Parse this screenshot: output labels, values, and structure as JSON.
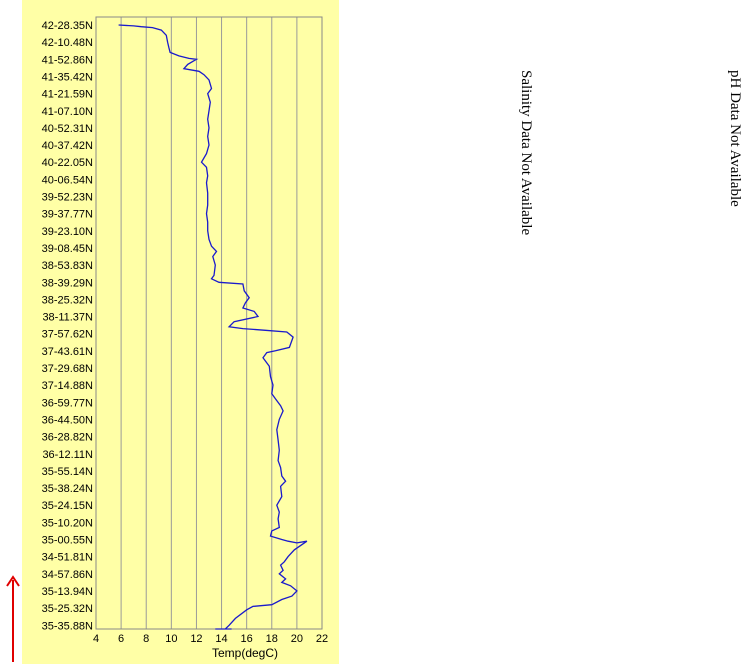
{
  "chart_data": {
    "type": "line",
    "orientation": "vertical-profile",
    "xlabel": "Temp(degC)",
    "xlim": [
      4,
      22
    ],
    "xticks": [
      4,
      6,
      8,
      10,
      12,
      14,
      16,
      18,
      20,
      22
    ],
    "grid": "vertical",
    "series_color": "#1a1acc",
    "y_labels": [
      "42-28.35N",
      "42-10.48N",
      "41-52.86N",
      "41-35.42N",
      "41-21.59N",
      "41-07.10N",
      "40-52.31N",
      "40-37.42N",
      "40-22.05N",
      "40-06.54N",
      "39-52.23N",
      "39-37.77N",
      "39-23.10N",
      "39-08.45N",
      "38-53.83N",
      "38-39.29N",
      "38-25.32N",
      "38-11.37N",
      "37-57.62N",
      "37-43.61N",
      "37-29.68N",
      "37-14.88N",
      "36-59.77N",
      "36-44.50N",
      "36-28.82N",
      "36-12.11N",
      "35-55.14N",
      "35-38.24N",
      "35-24.15N",
      "35-10.20N",
      "35-00.55N",
      "34-51.81N",
      "34-57.86N",
      "35-13.94N",
      "35-25.32N",
      "35-35.88N"
    ],
    "points": [
      [
        5.8,
        0
      ],
      [
        7.0,
        0.05
      ],
      [
        7.6,
        0.1
      ],
      [
        8.5,
        0.15
      ],
      [
        9.2,
        0.3
      ],
      [
        9.6,
        0.6
      ],
      [
        9.7,
        1.0
      ],
      [
        9.8,
        1.3
      ],
      [
        9.9,
        1.6
      ],
      [
        10.6,
        1.8
      ],
      [
        11.4,
        1.95
      ],
      [
        12.0,
        2.0
      ],
      [
        11.3,
        2.3
      ],
      [
        11.0,
        2.55
      ],
      [
        12.2,
        2.7
      ],
      [
        12.6,
        2.9
      ],
      [
        13.0,
        3.2
      ],
      [
        13.2,
        3.7
      ],
      [
        12.9,
        4.0
      ],
      [
        13.1,
        4.5
      ],
      [
        13.0,
        5.0
      ],
      [
        12.9,
        5.5
      ],
      [
        13.0,
        6.0
      ],
      [
        12.9,
        6.5
      ],
      [
        13.0,
        7.0
      ],
      [
        12.8,
        7.5
      ],
      [
        12.4,
        8.0
      ],
      [
        12.8,
        8.3
      ],
      [
        12.9,
        8.8
      ],
      [
        12.8,
        9.2
      ],
      [
        12.9,
        9.8
      ],
      [
        12.9,
        10.5
      ],
      [
        12.8,
        11.0
      ],
      [
        12.9,
        11.5
      ],
      [
        12.9,
        12.0
      ],
      [
        13.0,
        12.5
      ],
      [
        13.2,
        12.9
      ],
      [
        13.6,
        13.2
      ],
      [
        13.3,
        13.5
      ],
      [
        13.5,
        14.0
      ],
      [
        13.4,
        14.6
      ],
      [
        13.2,
        14.8
      ],
      [
        13.8,
        15.0
      ],
      [
        15.7,
        15.1
      ],
      [
        15.8,
        15.5
      ],
      [
        16.2,
        15.9
      ],
      [
        15.9,
        16.2
      ],
      [
        15.7,
        16.5
      ],
      [
        16.6,
        16.7
      ],
      [
        16.9,
        17.0
      ],
      [
        15.0,
        17.3
      ],
      [
        14.6,
        17.6
      ],
      [
        15.7,
        17.7
      ],
      [
        17.5,
        17.8
      ],
      [
        19.2,
        17.9
      ],
      [
        19.7,
        18.2
      ],
      [
        19.4,
        18.8
      ],
      [
        18.3,
        19.0
      ],
      [
        17.6,
        19.1
      ],
      [
        17.3,
        19.4
      ],
      [
        17.8,
        19.9
      ],
      [
        17.9,
        20.5
      ],
      [
        18.1,
        21.0
      ],
      [
        18.0,
        21.5
      ],
      [
        18.3,
        21.8
      ],
      [
        18.7,
        22.2
      ],
      [
        18.9,
        22.5
      ],
      [
        18.6,
        23.0
      ],
      [
        18.4,
        23.6
      ],
      [
        18.5,
        24.2
      ],
      [
        18.6,
        24.8
      ],
      [
        18.5,
        25.4
      ],
      [
        18.7,
        25.8
      ],
      [
        18.8,
        26.3
      ],
      [
        19.1,
        26.6
      ],
      [
        18.7,
        26.9
      ],
      [
        18.8,
        27.5
      ],
      [
        18.4,
        28.0
      ],
      [
        18.6,
        28.4
      ],
      [
        18.5,
        28.8
      ],
      [
        18.6,
        29.3
      ],
      [
        18.0,
        29.5
      ],
      [
        17.9,
        29.8
      ],
      [
        18.8,
        30.0
      ],
      [
        19.3,
        30.1
      ],
      [
        20.0,
        30.2
      ],
      [
        20.8,
        30.1
      ],
      [
        19.8,
        30.6
      ],
      [
        19.3,
        31.0
      ],
      [
        19.0,
        31.3
      ],
      [
        18.7,
        31.5
      ],
      [
        18.9,
        31.8
      ],
      [
        18.6,
        32.0
      ],
      [
        19.1,
        32.3
      ],
      [
        18.8,
        32.5
      ],
      [
        19.5,
        32.7
      ],
      [
        20.0,
        33.0
      ],
      [
        19.6,
        33.3
      ],
      [
        18.8,
        33.5
      ],
      [
        18.0,
        33.8
      ],
      [
        16.5,
        33.9
      ],
      [
        16.0,
        34.1
      ],
      [
        15.1,
        34.6
      ],
      [
        14.6,
        35.0
      ],
      [
        14.3,
        35.3
      ],
      [
        14.0,
        35.6
      ],
      [
        13.6,
        35.8
      ],
      [
        13.9,
        36.0
      ],
      [
        13.5,
        36.2
      ],
      [
        13.9,
        36.5
      ],
      [
        14.4,
        36.6
      ],
      [
        14.8,
        36.85
      ]
    ]
  },
  "notes": {
    "salinity": "Salinity Data Not Available",
    "ph": "pH Data Not Available"
  },
  "direction_arrow": {
    "color": "#e00000",
    "icon": "up-arrow-icon"
  }
}
